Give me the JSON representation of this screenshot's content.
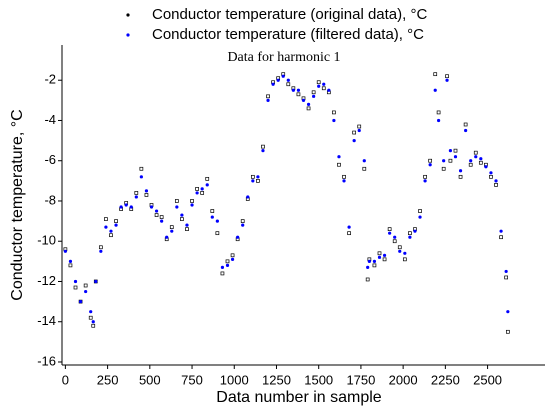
{
  "chart_data": {
    "type": "scatter",
    "title": "Data for harmonic 1",
    "xlabel": "Data number in sample",
    "ylabel": "Conductor temperature, °C",
    "xlim": [
      -20,
      2840
    ],
    "ylim": [
      -16.15,
      -0.25
    ],
    "xticks": [
      0,
      250,
      500,
      750,
      1000,
      1250,
      1500,
      1750,
      2000,
      2250,
      2500
    ],
    "yticks": [
      -16,
      -14,
      -12,
      -10,
      -8,
      -6,
      -4,
      -2
    ],
    "x": [
      0,
      30,
      60,
      90,
      120,
      150,
      165,
      180,
      210,
      240,
      270,
      300,
      330,
      360,
      390,
      420,
      450,
      480,
      510,
      540,
      570,
      600,
      630,
      660,
      690,
      720,
      750,
      780,
      810,
      840,
      870,
      900,
      930,
      960,
      990,
      1020,
      1050,
      1080,
      1110,
      1140,
      1170,
      1200,
      1230,
      1260,
      1290,
      1320,
      1350,
      1380,
      1410,
      1440,
      1470,
      1500,
      1530,
      1560,
      1590,
      1620,
      1650,
      1680,
      1710,
      1740,
      1770,
      1790,
      1800,
      1830,
      1860,
      1890,
      1920,
      1950,
      1980,
      2010,
      2040,
      2070,
      2100,
      2130,
      2160,
      2190,
      2210,
      2240,
      2260,
      2280,
      2310,
      2340,
      2370,
      2400,
      2430,
      2460,
      2490,
      2520,
      2550,
      2580,
      2610,
      2620
    ],
    "series": [
      {
        "name": "Conductor temperature (original data), °C",
        "color": "#000000",
        "values": [
          -10.4,
          -11.2,
          -12.3,
          -13.0,
          -12.2,
          -13.8,
          -14.2,
          -12.0,
          -10.3,
          -8.9,
          -9.7,
          -9.0,
          -8.4,
          -8.1,
          -8.4,
          -7.6,
          -6.4,
          -7.7,
          -8.2,
          -8.7,
          -8.8,
          -9.9,
          -9.3,
          -8.0,
          -8.9,
          -9.4,
          -8.0,
          -7.4,
          -7.6,
          -6.9,
          -8.5,
          -9.6,
          -11.6,
          -11.0,
          -10.7,
          -9.9,
          -9.0,
          -7.9,
          -6.8,
          -7.0,
          -5.3,
          -2.8,
          -2.1,
          -1.9,
          -1.7,
          -2.2,
          -2.4,
          -2.7,
          -2.9,
          -3.4,
          -2.6,
          -2.1,
          -2.4,
          -2.6,
          -3.6,
          -6.2,
          -6.8,
          -9.6,
          -4.6,
          -4.3,
          -6.4,
          -11.9,
          -10.9,
          -11.2,
          -10.6,
          -10.9,
          -9.4,
          -10.0,
          -10.3,
          -10.9,
          -9.6,
          -9.4,
          -8.5,
          -6.8,
          -6.0,
          -1.7,
          -3.6,
          -6.4,
          -1.8,
          -6.0,
          -5.5,
          -6.8,
          -4.2,
          -6.2,
          -5.6,
          -6.1,
          -6.2,
          -6.8,
          -7.2,
          -9.8,
          -11.8,
          -14.5
        ]
      },
      {
        "name": "Conductor temperature (filtered data), °C",
        "color": "#0000ff",
        "values": [
          -10.5,
          -11.0,
          -12.0,
          -13.0,
          -12.5,
          -13.5,
          -14.0,
          -12.0,
          -10.5,
          -9.3,
          -9.5,
          -9.2,
          -8.3,
          -8.2,
          -8.3,
          -7.8,
          -6.8,
          -7.5,
          -8.3,
          -8.5,
          -9.0,
          -9.8,
          -9.5,
          -8.3,
          -8.7,
          -9.2,
          -8.2,
          -7.6,
          -7.4,
          -7.2,
          -8.8,
          -9.0,
          -11.3,
          -11.2,
          -10.9,
          -9.8,
          -9.2,
          -7.8,
          -7.0,
          -6.8,
          -5.5,
          -3.0,
          -2.2,
          -2.0,
          -1.8,
          -2.0,
          -2.5,
          -2.5,
          -3.0,
          -3.2,
          -2.8,
          -2.3,
          -2.2,
          -2.5,
          -4.0,
          -5.8,
          -7.0,
          -9.3,
          -5.0,
          -4.5,
          -6.0,
          -11.3,
          -11.0,
          -11.0,
          -10.8,
          -10.7,
          -9.6,
          -9.8,
          -10.5,
          -10.6,
          -9.8,
          -9.5,
          -8.8,
          -7.0,
          -6.2,
          -2.5,
          -4.0,
          -6.0,
          -2.0,
          -5.5,
          -5.8,
          -6.5,
          -4.5,
          -6.0,
          -5.8,
          -5.9,
          -6.3,
          -6.6,
          -7.0,
          -9.5,
          -11.5,
          -13.5
        ]
      }
    ]
  }
}
